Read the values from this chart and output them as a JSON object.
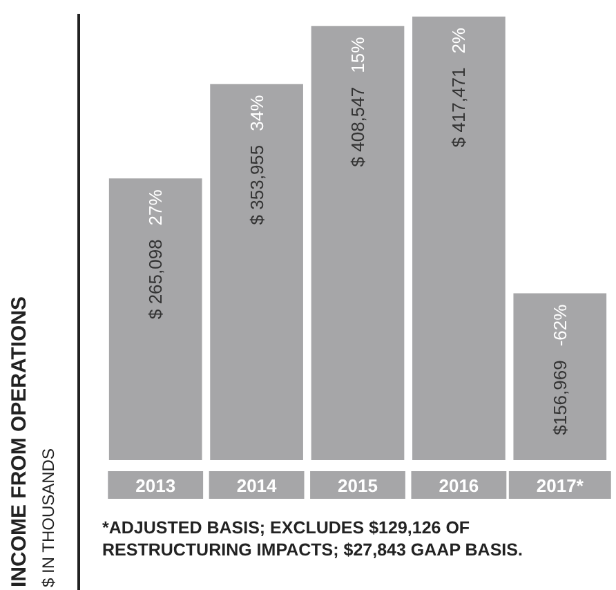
{
  "chart_data": {
    "type": "bar",
    "ylabel": "INCOME FROM OPERATIONS",
    "subtitle": "$ IN THOUSANDS",
    "categories": [
      "2013",
      "2014",
      "2015",
      "2016",
      "2017*"
    ],
    "values": [
      265098,
      353955,
      408547,
      417471,
      156969
    ],
    "value_labels": [
      "$ 265,098",
      "$ 353,955",
      "$ 408,547",
      "$ 417,471",
      "$156,969"
    ],
    "color": "#a6a6a8",
    "annotations": [
      "27%",
      "34%",
      "15%",
      "2%",
      "-62%",
      "*ADJUSTED BASIS; EXCLUDES $129,126 OF RESTRUCTURING IMPACTS; $27,843 GAAP BASIS."
    ],
    "grid": false
  }
}
